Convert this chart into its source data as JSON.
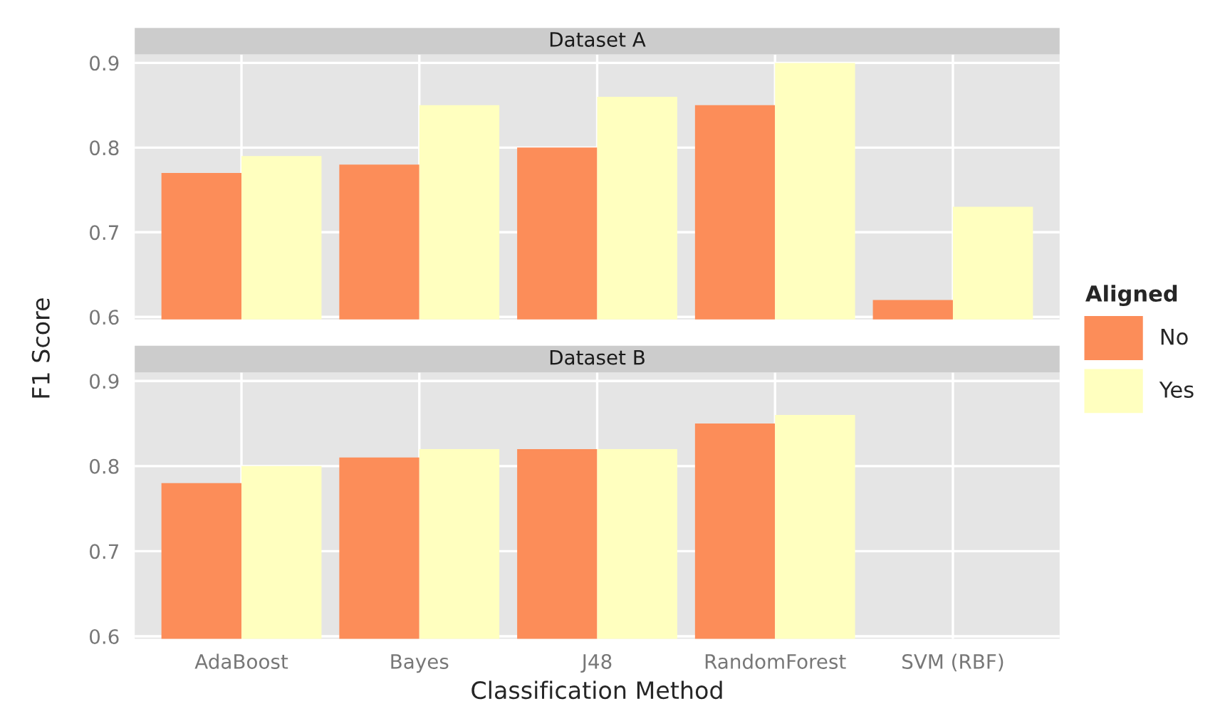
{
  "chart_data": [
    {
      "type": "bar",
      "title": "Dataset A",
      "ylabel": "F1 Score",
      "legend_title": "Aligned",
      "legend": "right",
      "grid": true,
      "tick_labels": "y",
      "ylim": [
        0.597,
        0.91
      ],
      "yticks": [
        0.6,
        0.7,
        0.8,
        0.9
      ],
      "series": [
        {
          "name": "No",
          "color": "#fc8d59",
          "values": [
            0.77,
            0.78,
            0.8,
            0.85,
            0.62
          ]
        },
        {
          "name": "Yes",
          "color": "#ffffbf",
          "values": [
            0.79,
            0.85,
            0.86,
            0.9,
            0.73
          ]
        }
      ]
    },
    {
      "type": "bar",
      "title": "Dataset B",
      "xlabel": "Classification Method",
      "grid": true,
      "categories": [
        "AdaBoost",
        "Bayes",
        "J48",
        "RandomForest",
        "SVM (RBF)"
      ],
      "ylim": [
        0.597,
        0.91
      ],
      "yticks": [
        0.6,
        0.7,
        0.8,
        0.9
      ],
      "series": [
        {
          "color": "#fc8d59",
          "values": [
            0.78,
            0.81,
            0.82,
            0.85,
            null
          ]
        },
        {
          "color": "#ffffbf",
          "values": [
            0.8,
            0.82,
            0.82,
            0.86,
            null
          ]
        }
      ]
    }
  ]
}
